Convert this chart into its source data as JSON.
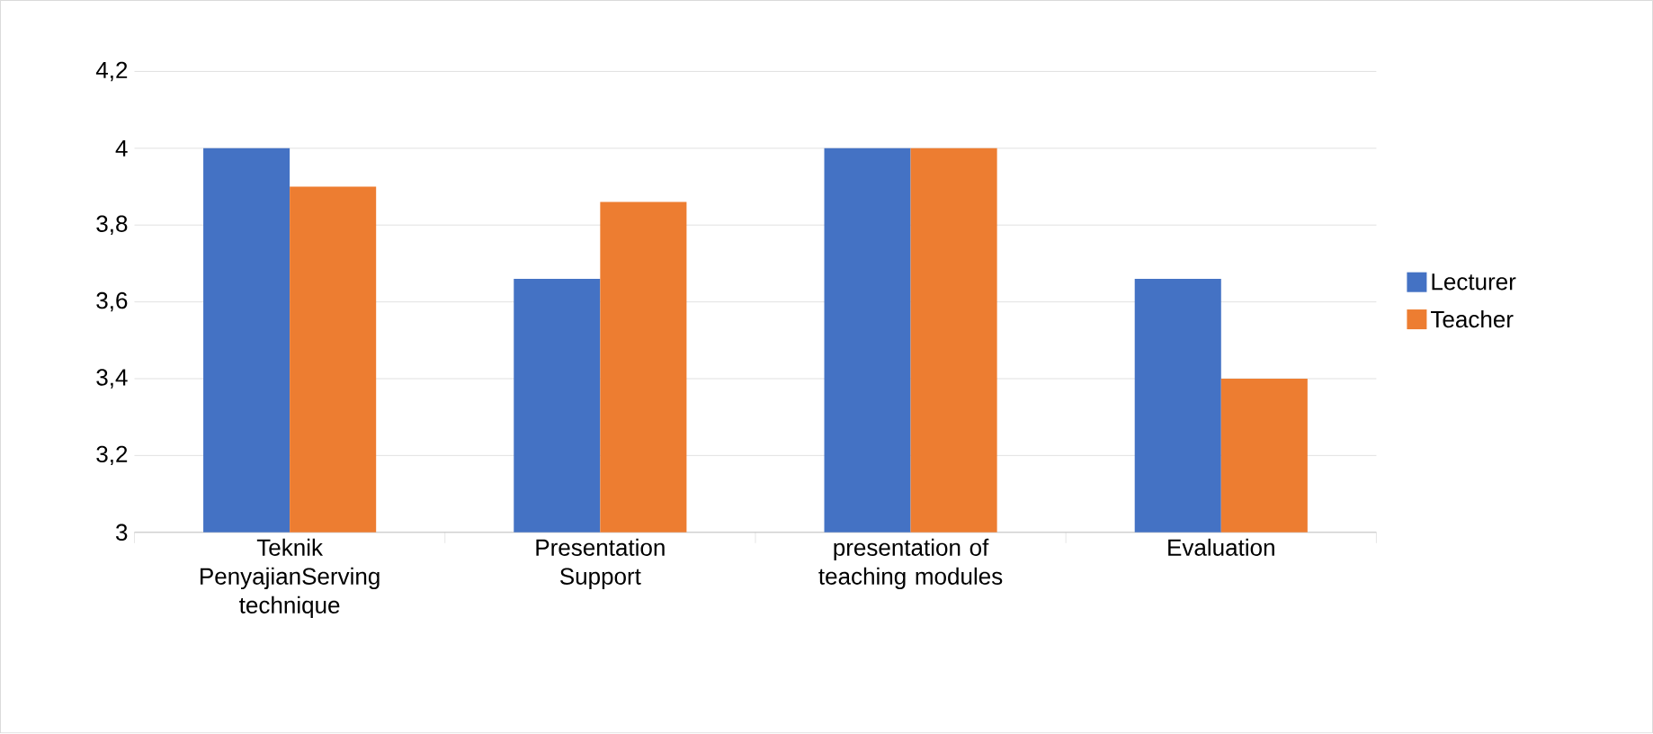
{
  "chart_data": {
    "type": "bar",
    "categories": [
      "Teknik PenyajianServing technique",
      "Presentation Support",
      "presentation of teaching modules",
      "Evaluation"
    ],
    "series": [
      {
        "name": "Lecturer",
        "color": "#4472c4",
        "values": [
          4,
          3.66,
          4,
          3.66
        ]
      },
      {
        "name": "Teacher",
        "color": "#ed7d31",
        "values": [
          3.9,
          3.86,
          4,
          3.4
        ]
      }
    ],
    "ylim": [
      3,
      4.2
    ],
    "yticks": [
      3,
      {
        "value": 3.2,
        "label": "3,2"
      },
      {
        "value": 3.4,
        "label": "3,4"
      },
      {
        "value": 3.6,
        "label": "3,6"
      },
      {
        "value": 3.8,
        "label": "3,8"
      },
      4,
      {
        "value": 4.2,
        "label": "4,2"
      }
    ],
    "grid": "y",
    "legend": "right"
  }
}
